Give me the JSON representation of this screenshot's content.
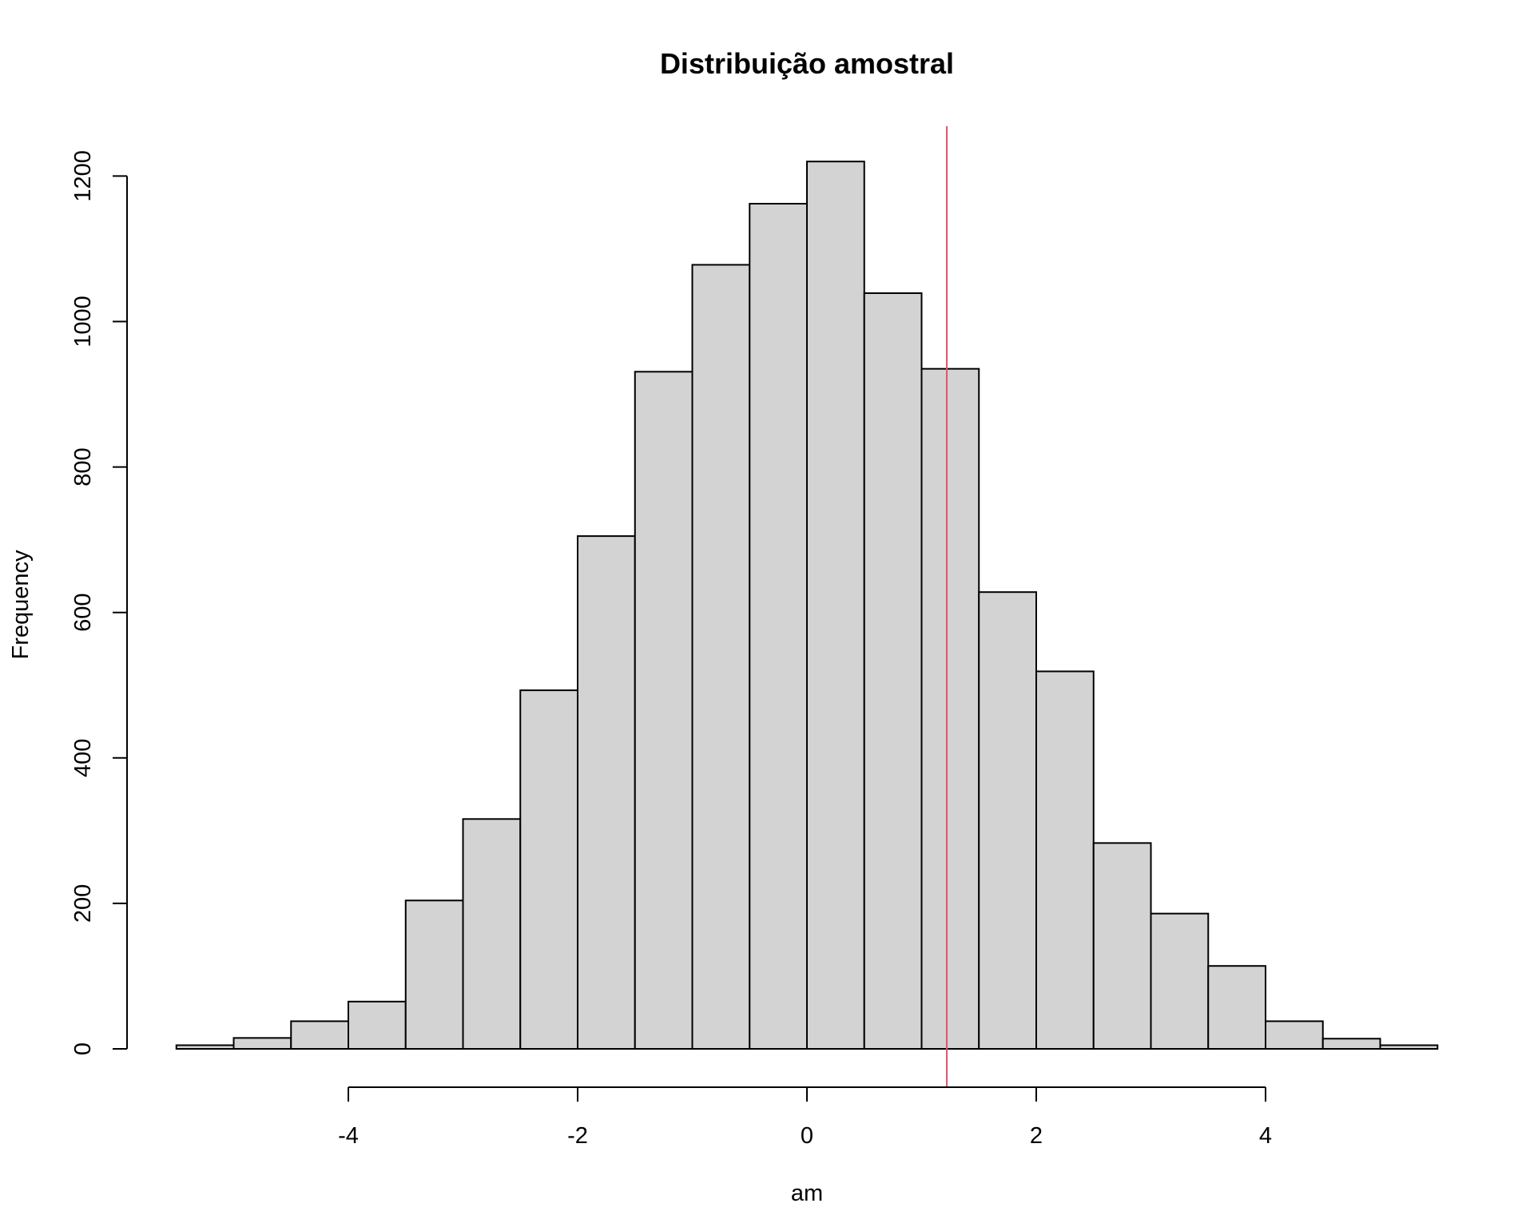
{
  "chart_data": {
    "type": "bar",
    "title": "Distribuição amostral",
    "xlabel": "am",
    "ylabel": "Frequency",
    "bin_edges": [
      -5.5,
      -5,
      -4.5,
      -4,
      -3.5,
      -3,
      -2.5,
      -2,
      -1.5,
      -1,
      -0.5,
      0,
      0.5,
      1,
      1.5,
      2,
      2.5,
      3,
      3.5,
      4,
      4.5,
      5,
      5.5
    ],
    "values": [
      5,
      15,
      38,
      65,
      204,
      316,
      493,
      705,
      931,
      1078,
      1162,
      1220,
      1039,
      935,
      628,
      519,
      283,
      186,
      114,
      38,
      14,
      5
    ],
    "x_ticks": [
      -4,
      -2,
      0,
      2,
      4
    ],
    "x_tick_labels": [
      "-4",
      "-2",
      "0",
      "2",
      "4"
    ],
    "y_ticks": [
      0,
      200,
      400,
      600,
      800,
      1000,
      1200
    ],
    "y_tick_labels": [
      "0",
      "200",
      "400",
      "600",
      "800",
      "1000",
      "1200"
    ],
    "xlim": [
      -5.5,
      5.5
    ],
    "ylim": [
      0,
      1270
    ],
    "reference_line": {
      "x": 1.22,
      "color": "#DF536B"
    },
    "bar_fill": "#D3D3D3",
    "bar_stroke": "#000000",
    "grid": false,
    "legend": false
  }
}
